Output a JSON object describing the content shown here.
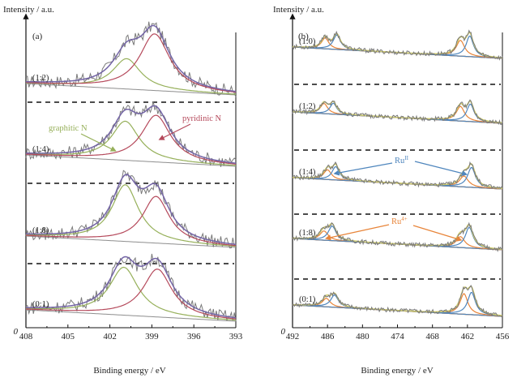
{
  "chart_data": [
    {
      "panel_label": "(a)",
      "type": "line",
      "ylabel": "Intensity / a.u.",
      "xlabel": "Binding energy / eV",
      "origin_label": "0",
      "xlim": [
        408,
        393
      ],
      "xticks": [
        408,
        405,
        402,
        399,
        396,
        393
      ],
      "colors": {
        "data": "#7a7a7a",
        "envelope": "#7465a6",
        "graphitic": "#96b05a",
        "pyridinic": "#b5495b",
        "baseline": "#8e8e8e"
      },
      "annotations": [
        {
          "text": "graphitic N",
          "color": "#96b05a",
          "target_x": 401.6
        },
        {
          "text": "pyridinic N",
          "color": "#b5495b",
          "target_x": 398.8
        }
      ],
      "spectra": [
        {
          "label": "(1:2)",
          "graphitic_N": {
            "center": 400.8,
            "height": 0.52,
            "fwhm": 2.4
          },
          "pyridinic_N": {
            "center": 398.8,
            "height": 0.97,
            "fwhm": 2.6
          }
        },
        {
          "label": "(1:4)",
          "graphitic_N": {
            "center": 400.9,
            "height": 0.67,
            "fwhm": 2.4
          },
          "pyridinic_N": {
            "center": 398.7,
            "height": 0.8,
            "fwhm": 2.5
          }
        },
        {
          "label": "(1:8)",
          "graphitic_N": {
            "center": 400.9,
            "height": 0.97,
            "fwhm": 2.3
          },
          "pyridinic_N": {
            "center": 398.7,
            "height": 0.8,
            "fwhm": 2.3
          }
        },
        {
          "label": "(0:1)",
          "graphitic_N": {
            "center": 401.0,
            "height": 0.82,
            "fwhm": 2.5
          },
          "pyridinic_N": {
            "center": 398.6,
            "height": 0.82,
            "fwhm": 2.5
          }
        }
      ]
    },
    {
      "panel_label": "(b)",
      "type": "line",
      "ylabel": "Intensity / a.u.",
      "xlabel": "Binding energy / eV",
      "origin_label": "0",
      "xlim": [
        492,
        456
      ],
      "xticks": [
        492,
        486,
        480,
        474,
        468,
        462,
        456
      ],
      "colors": {
        "data": "#7a7a7a",
        "envelope": "#cdc96a",
        "ru_II": "#4f86bd",
        "ru_4": "#e8853a"
      },
      "annotations": [
        {
          "text": "Ru",
          "sup": "II",
          "color": "#4f86bd",
          "targets_x": [
            485.9,
            461.6
          ]
        },
        {
          "text": "Ru",
          "sup": "4+",
          "color": "#e8853a",
          "targets_x": [
            486.8,
            462.8
          ]
        }
      ],
      "spectra": [
        {
          "label": "(1:0)",
          "peaks": [
            {
              "center": 486.4,
              "height": 0.45,
              "fwhm": 1.5,
              "kind": "ru_4"
            },
            {
              "center": 484.4,
              "height": 0.6,
              "fwhm": 1.5,
              "kind": "ru_II"
            },
            {
              "center": 463.2,
              "height": 0.65,
              "fwhm": 1.7,
              "kind": "ru_4"
            },
            {
              "center": 461.6,
              "height": 0.85,
              "fwhm": 1.5,
              "kind": "ru_II"
            }
          ]
        },
        {
          "label": "(1:2)",
          "peaks": [
            {
              "center": 486.6,
              "height": 0.42,
              "fwhm": 1.5,
              "kind": "ru_4"
            },
            {
              "center": 485.0,
              "height": 0.45,
              "fwhm": 1.4,
              "kind": "ru_II"
            },
            {
              "center": 463.2,
              "height": 0.6,
              "fwhm": 1.7,
              "kind": "ru_4"
            },
            {
              "center": 461.5,
              "height": 0.72,
              "fwhm": 1.5,
              "kind": "ru_II"
            }
          ]
        },
        {
          "label": "(1:4)",
          "peaks": [
            {
              "center": 486.0,
              "height": 0.4,
              "fwhm": 1.6,
              "kind": "ru_4"
            },
            {
              "center": 484.6,
              "height": 0.55,
              "fwhm": 1.5,
              "kind": "ru_II"
            },
            {
              "center": 462.6,
              "height": 0.45,
              "fwhm": 1.8,
              "kind": "ru_4"
            },
            {
              "center": 461.3,
              "height": 0.82,
              "fwhm": 1.6,
              "kind": "ru_II"
            }
          ]
        },
        {
          "label": "(1:8)",
          "peaks": [
            {
              "center": 486.6,
              "height": 0.38,
              "fwhm": 1.7,
              "kind": "ru_4"
            },
            {
              "center": 485.2,
              "height": 0.6,
              "fwhm": 1.6,
              "kind": "ru_II"
            },
            {
              "center": 463.2,
              "height": 0.45,
              "fwhm": 1.8,
              "kind": "ru_4"
            },
            {
              "center": 461.7,
              "height": 0.85,
              "fwhm": 1.6,
              "kind": "ru_II"
            }
          ]
        },
        {
          "label": "(0:1)",
          "peaks": [
            {
              "center": 486.2,
              "height": 0.35,
              "fwhm": 1.6,
              "kind": "ru_4"
            },
            {
              "center": 484.8,
              "height": 0.5,
              "fwhm": 1.6,
              "kind": "ru_II"
            },
            {
              "center": 462.6,
              "height": 0.85,
              "fwhm": 1.6,
              "kind": "ru_4"
            },
            {
              "center": 461.3,
              "height": 0.92,
              "fwhm": 1.6,
              "kind": "ru_II"
            }
          ]
        }
      ]
    }
  ]
}
